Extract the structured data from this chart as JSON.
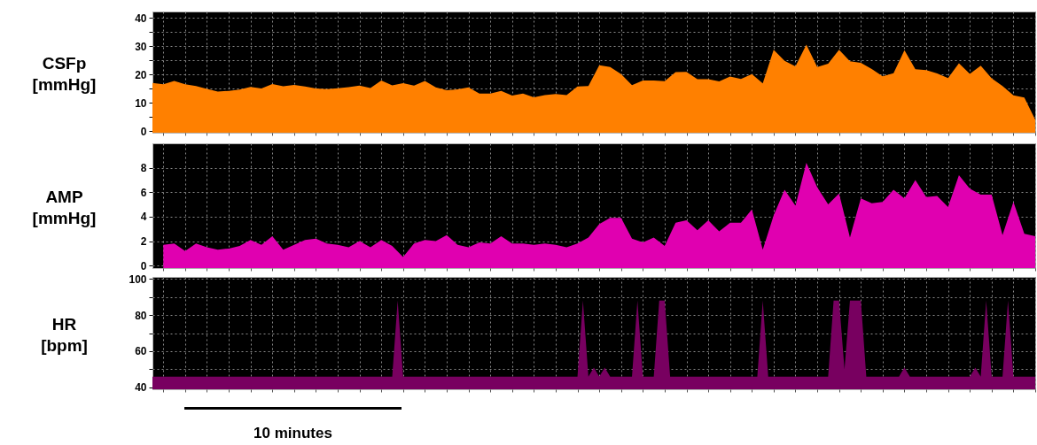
{
  "chart_data": [
    {
      "type": "area",
      "ylabel": "CSFp [mmHg]",
      "color": "#ff8000",
      "grid": true,
      "tick_labels": "y",
      "ylim": [
        -0.5,
        42.3
      ],
      "yticks": [
        0,
        {
          "value": 5,
          "label": null
        },
        10,
        {
          "value": 15,
          "label": null
        },
        20,
        {
          "value": 25,
          "label": null
        },
        30,
        {
          "value": 35,
          "label": null
        },
        40
      ],
      "categories": [
        null,
        null,
        null,
        null,
        null,
        null,
        null,
        null,
        null,
        null,
        null,
        null,
        null,
        null,
        null,
        null,
        null,
        null,
        null,
        null,
        null,
        null,
        null,
        null,
        null,
        null,
        null,
        null,
        null,
        null,
        null,
        null,
        null,
        null,
        null,
        null,
        null,
        null,
        null,
        null,
        null,
        null,
        null,
        null,
        null,
        null,
        null,
        null,
        null,
        null,
        null,
        null,
        null,
        null,
        null,
        null,
        null,
        null,
        null,
        null,
        null,
        null,
        null,
        null,
        null,
        null,
        null,
        null,
        null,
        null,
        null,
        null,
        null,
        null,
        null,
        null,
        null,
        null,
        null,
        null,
        null,
        null
      ],
      "values": [
        17.1,
        16.6,
        17.8,
        16.6,
        16.0,
        15.0,
        14.0,
        14.3,
        14.7,
        15.7,
        15.1,
        16.7,
        15.9,
        16.4,
        15.8,
        15.1,
        14.9,
        15.2,
        15.6,
        16.1,
        15.3,
        17.9,
        16.2,
        17.0,
        16.1,
        17.8,
        15.5,
        14.5,
        14.8,
        15.5,
        13.3,
        13.3,
        14.3,
        12.6,
        13.3,
        12.0,
        12.8,
        13.2,
        12.8,
        15.8,
        16.0,
        23.3,
        22.7,
        20.2,
        16.3,
        17.9,
        17.9,
        17.7,
        20.9,
        21.0,
        18.4,
        18.4,
        17.6,
        19.3,
        18.5,
        20.2,
        16.9,
        28.8,
        24.9,
        22.9,
        30.6,
        22.7,
        23.9,
        28.8,
        24.7,
        24.2,
        22.0,
        19.4,
        20.5,
        28.6,
        21.9,
        21.6,
        20.4,
        18.8,
        24.0,
        20.3,
        23.2,
        18.7,
        16.0,
        12.7,
        11.9,
        4.1
      ]
    },
    {
      "type": "area",
      "ylabel": "AMP [mmHg]",
      "color": "#e000b0",
      "grid": true,
      "tick_labels": "y",
      "ylim": [
        -0.2,
        10
      ],
      "yticks": [
        0,
        2,
        4,
        6,
        8
      ],
      "categories": [
        null,
        null,
        null,
        null,
        null,
        null,
        null,
        null,
        null,
        null,
        null,
        null,
        null,
        null,
        null,
        null,
        null,
        null,
        null,
        null,
        null,
        null,
        null,
        null,
        null,
        null,
        null,
        null,
        null,
        null,
        null,
        null,
        null,
        null,
        null,
        null,
        null,
        null,
        null,
        null,
        null,
        null,
        null,
        null,
        null,
        null,
        null,
        null,
        null,
        null,
        null,
        null,
        null,
        null,
        null,
        null,
        null,
        null,
        null,
        null,
        null,
        null,
        null,
        null,
        null,
        null,
        null,
        null,
        null,
        null,
        null,
        null,
        null,
        null,
        null,
        null,
        null,
        null,
        null,
        null,
        null,
        null
      ],
      "values": [
        null,
        1.7,
        1.8,
        1.2,
        1.8,
        1.5,
        1.3,
        1.4,
        1.6,
        2.1,
        1.7,
        2.4,
        1.3,
        1.7,
        2.1,
        2.2,
        1.8,
        1.7,
        1.5,
        2.0,
        1.5,
        2.1,
        1.6,
        0.7,
        1.8,
        2.1,
        2.0,
        2.5,
        1.7,
        1.5,
        1.9,
        1.8,
        2.4,
        1.8,
        1.8,
        1.7,
        1.8,
        1.7,
        1.5,
        1.8,
        2.3,
        3.4,
        3.9,
        3.9,
        2.2,
        1.9,
        2.3,
        1.6,
        3.5,
        3.7,
        2.9,
        3.7,
        2.8,
        3.5,
        3.5,
        4.6,
        1.3,
        4.1,
        6.2,
        4.9,
        8.4,
        6.4,
        5.0,
        5.9,
        2.3,
        5.5,
        5.1,
        5.2,
        6.2,
        5.5,
        7.0,
        5.6,
        5.7,
        4.8,
        7.4,
        6.3,
        5.8,
        5.8,
        2.5,
        5.2,
        2.6,
        2.4
      ]
    },
    {
      "type": "area",
      "ylabel": "HR [bpm]",
      "color": "#780060",
      "grid": true,
      "tick_labels": "y",
      "ylim": [
        39,
        101
      ],
      "annotations": [
        "10 minutes"
      ],
      "yticks": [
        40,
        {
          "value": 50,
          "label": null
        },
        60,
        {
          "value": 70,
          "label": null
        },
        80,
        {
          "value": 90,
          "label": null
        },
        100
      ],
      "categories": [
        null,
        null,
        null,
        null,
        null,
        null,
        null,
        null,
        null,
        null,
        null,
        null,
        null,
        null,
        null,
        null,
        null,
        null,
        null,
        null,
        null,
        null,
        null,
        null,
        null,
        null,
        null,
        null,
        null,
        null,
        null,
        null,
        null,
        null,
        null,
        null,
        null,
        null,
        null,
        null,
        null,
        null,
        null,
        null,
        null,
        null,
        null,
        null,
        null,
        null,
        null,
        null,
        null,
        null,
        null,
        null,
        null,
        null,
        null,
        null,
        null,
        null,
        null,
        null,
        null,
        null,
        null,
        null,
        null,
        null,
        null,
        null,
        null,
        null,
        null,
        null,
        null,
        null,
        null,
        null,
        null,
        null,
        null,
        null,
        null,
        null,
        null,
        null,
        null,
        null,
        null,
        null,
        null,
        null,
        null,
        null,
        null,
        null,
        null,
        null,
        null,
        null,
        null,
        null,
        null,
        null,
        null,
        null,
        null,
        null,
        null,
        null,
        null,
        null,
        null,
        null,
        null,
        null,
        null,
        null,
        null,
        null,
        null,
        null,
        null,
        null,
        null,
        null,
        null,
        null,
        null,
        null,
        null,
        null,
        null,
        null,
        null,
        null,
        null,
        null,
        null,
        null,
        null,
        null,
        null,
        null,
        null,
        null,
        null,
        null,
        null,
        null,
        null,
        null,
        null,
        null,
        null,
        null,
        null,
        null,
        null,
        null,
        null
      ],
      "values": [
        46,
        46,
        46,
        46,
        46,
        46,
        46,
        46,
        46,
        46,
        46,
        46,
        46,
        46,
        46,
        46,
        46,
        46,
        46,
        46,
        46,
        46,
        46,
        46,
        46,
        46,
        46,
        46,
        46,
        46,
        46,
        46,
        46,
        46,
        46,
        46,
        46,
        46,
        46,
        46,
        46,
        46,
        46,
        46,
        46,
        88,
        46,
        46,
        46,
        46,
        46,
        46,
        46,
        46,
        46,
        46,
        46,
        46,
        46,
        46,
        46,
        46,
        46,
        46,
        46,
        46,
        46,
        46,
        46,
        46,
        46,
        46,
        46,
        46,
        46,
        46,
        46,
        46,
        46,
        88,
        46,
        51,
        46,
        51,
        46,
        46,
        46,
        46,
        46,
        88,
        46,
        46,
        46,
        88,
        88,
        46,
        46,
        46,
        46,
        46,
        46,
        46,
        46,
        46,
        46,
        46,
        46,
        46,
        46,
        46,
        46,
        46,
        88,
        46,
        46,
        46,
        46,
        46,
        46,
        46,
        46,
        46,
        46,
        46,
        46,
        88,
        88,
        50,
        88,
        88,
        88,
        46,
        46,
        46,
        46,
        46,
        46,
        46,
        51,
        46,
        46,
        46,
        46,
        46,
        46,
        46,
        46,
        46,
        46,
        46,
        46,
        51,
        46,
        88,
        46,
        46,
        46,
        88,
        46,
        46,
        46,
        46,
        46
      ]
    }
  ]
}
